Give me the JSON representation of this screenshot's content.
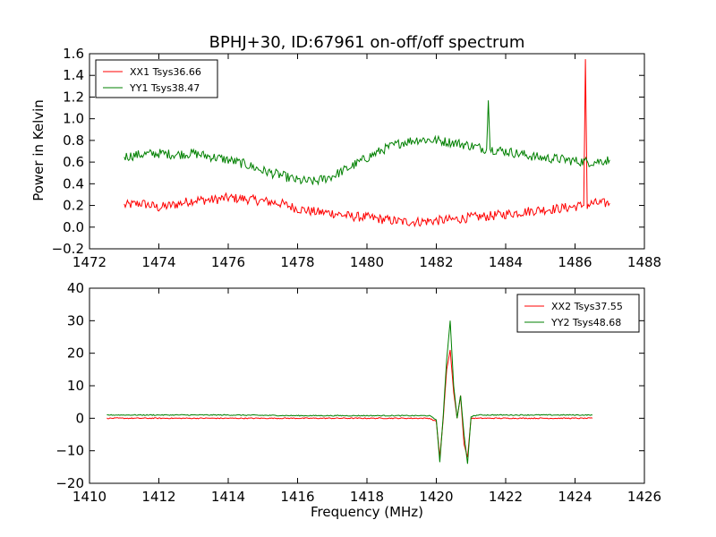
{
  "chart_data": [
    {
      "type": "line",
      "title": "BPHJ+30, ID:67961 on-off/off spectrum",
      "xlabel": "",
      "ylabel": "Power in Kelvin",
      "xlim": [
        1472,
        1488
      ],
      "ylim": [
        -0.2,
        1.6
      ],
      "xticks": [
        "1472",
        "1474",
        "1476",
        "1478",
        "1480",
        "1482",
        "1484",
        "1486",
        "1488"
      ],
      "yticks": [
        "−0.2",
        "0.0",
        "0.2",
        "0.4",
        "0.6",
        "0.8",
        "1.0",
        "1.2",
        "1.4",
        "1.6"
      ],
      "legend_position": "top-left",
      "series": [
        {
          "name": "XX1 Tsys36.66",
          "color": "#ff0000",
          "x": [
            1473.0,
            1473.5,
            1474.0,
            1474.5,
            1475.0,
            1475.5,
            1476.0,
            1476.5,
            1477.0,
            1477.5,
            1478.0,
            1478.5,
            1479.0,
            1479.5,
            1480.0,
            1480.5,
            1481.0,
            1481.5,
            1482.0,
            1482.5,
            1483.0,
            1483.5,
            1484.0,
            1484.5,
            1485.0,
            1485.5,
            1486.0,
            1486.25,
            1486.3,
            1486.35,
            1486.5,
            1487.0
          ],
          "y": [
            0.2,
            0.22,
            0.18,
            0.21,
            0.25,
            0.25,
            0.27,
            0.26,
            0.24,
            0.22,
            0.17,
            0.14,
            0.13,
            0.1,
            0.09,
            0.07,
            0.05,
            0.05,
            0.06,
            0.07,
            0.09,
            0.1,
            0.12,
            0.14,
            0.16,
            0.17,
            0.19,
            0.2,
            1.55,
            0.2,
            0.22,
            0.22
          ]
        },
        {
          "name": "YY1 Tsys38.47",
          "color": "#008000",
          "x": [
            1473.0,
            1473.5,
            1474.0,
            1474.5,
            1475.0,
            1475.5,
            1476.0,
            1476.5,
            1477.0,
            1477.5,
            1478.0,
            1478.5,
            1479.0,
            1479.5,
            1480.0,
            1480.5,
            1481.0,
            1481.5,
            1482.0,
            1482.5,
            1483.0,
            1483.45,
            1483.5,
            1483.55,
            1484.0,
            1484.5,
            1485.0,
            1485.5,
            1486.0,
            1486.5,
            1487.0
          ],
          "y": [
            0.65,
            0.67,
            0.68,
            0.67,
            0.68,
            0.65,
            0.62,
            0.58,
            0.52,
            0.48,
            0.43,
            0.42,
            0.47,
            0.55,
            0.64,
            0.72,
            0.78,
            0.81,
            0.8,
            0.78,
            0.75,
            0.72,
            1.17,
            0.72,
            0.7,
            0.67,
            0.64,
            0.63,
            0.61,
            0.6,
            0.62
          ]
        }
      ]
    },
    {
      "type": "line",
      "title": "",
      "xlabel": "Frequency (MHz)",
      "ylabel": "",
      "xlim": [
        1410,
        1426
      ],
      "ylim": [
        -20,
        40
      ],
      "xticks": [
        "1410",
        "1412",
        "1414",
        "1416",
        "1418",
        "1420",
        "1422",
        "1424",
        "1426"
      ],
      "yticks": [
        "−20",
        "−10",
        "0",
        "10",
        "20",
        "30",
        "40"
      ],
      "legend_position": "top-right",
      "series": [
        {
          "name": "XX2 Tsys37.55",
          "color": "#ff0000",
          "x": [
            1410.5,
            1412.0,
            1414.0,
            1416.0,
            1418.0,
            1419.8,
            1420.0,
            1420.1,
            1420.2,
            1420.3,
            1420.4,
            1420.5,
            1420.6,
            1420.7,
            1420.8,
            1420.9,
            1421.0,
            1421.2,
            1422.0,
            1424.0,
            1424.5
          ],
          "y": [
            0.0,
            0.0,
            0.0,
            0.0,
            0.0,
            0.0,
            -1.0,
            -12.0,
            0.0,
            15.0,
            21.0,
            8.0,
            0.0,
            7.0,
            -8.0,
            -12.0,
            0.0,
            0.0,
            0.0,
            0.0,
            0.0
          ]
        },
        {
          "name": "YY2 Tsys48.68",
          "color": "#008000",
          "x": [
            1410.5,
            1412.0,
            1414.0,
            1416.0,
            1418.0,
            1419.8,
            1420.0,
            1420.1,
            1420.2,
            1420.3,
            1420.4,
            1420.5,
            1420.6,
            1420.7,
            1420.8,
            1420.9,
            1421.0,
            1421.2,
            1422.0,
            1424.0,
            1424.5
          ],
          "y": [
            1.0,
            1.0,
            1.0,
            0.8,
            0.8,
            0.8,
            -0.5,
            -13.5,
            1.0,
            18.0,
            30.0,
            10.0,
            0.0,
            7.0,
            -5.0,
            -14.0,
            0.5,
            1.0,
            1.0,
            1.0,
            1.0
          ]
        }
      ]
    }
  ]
}
